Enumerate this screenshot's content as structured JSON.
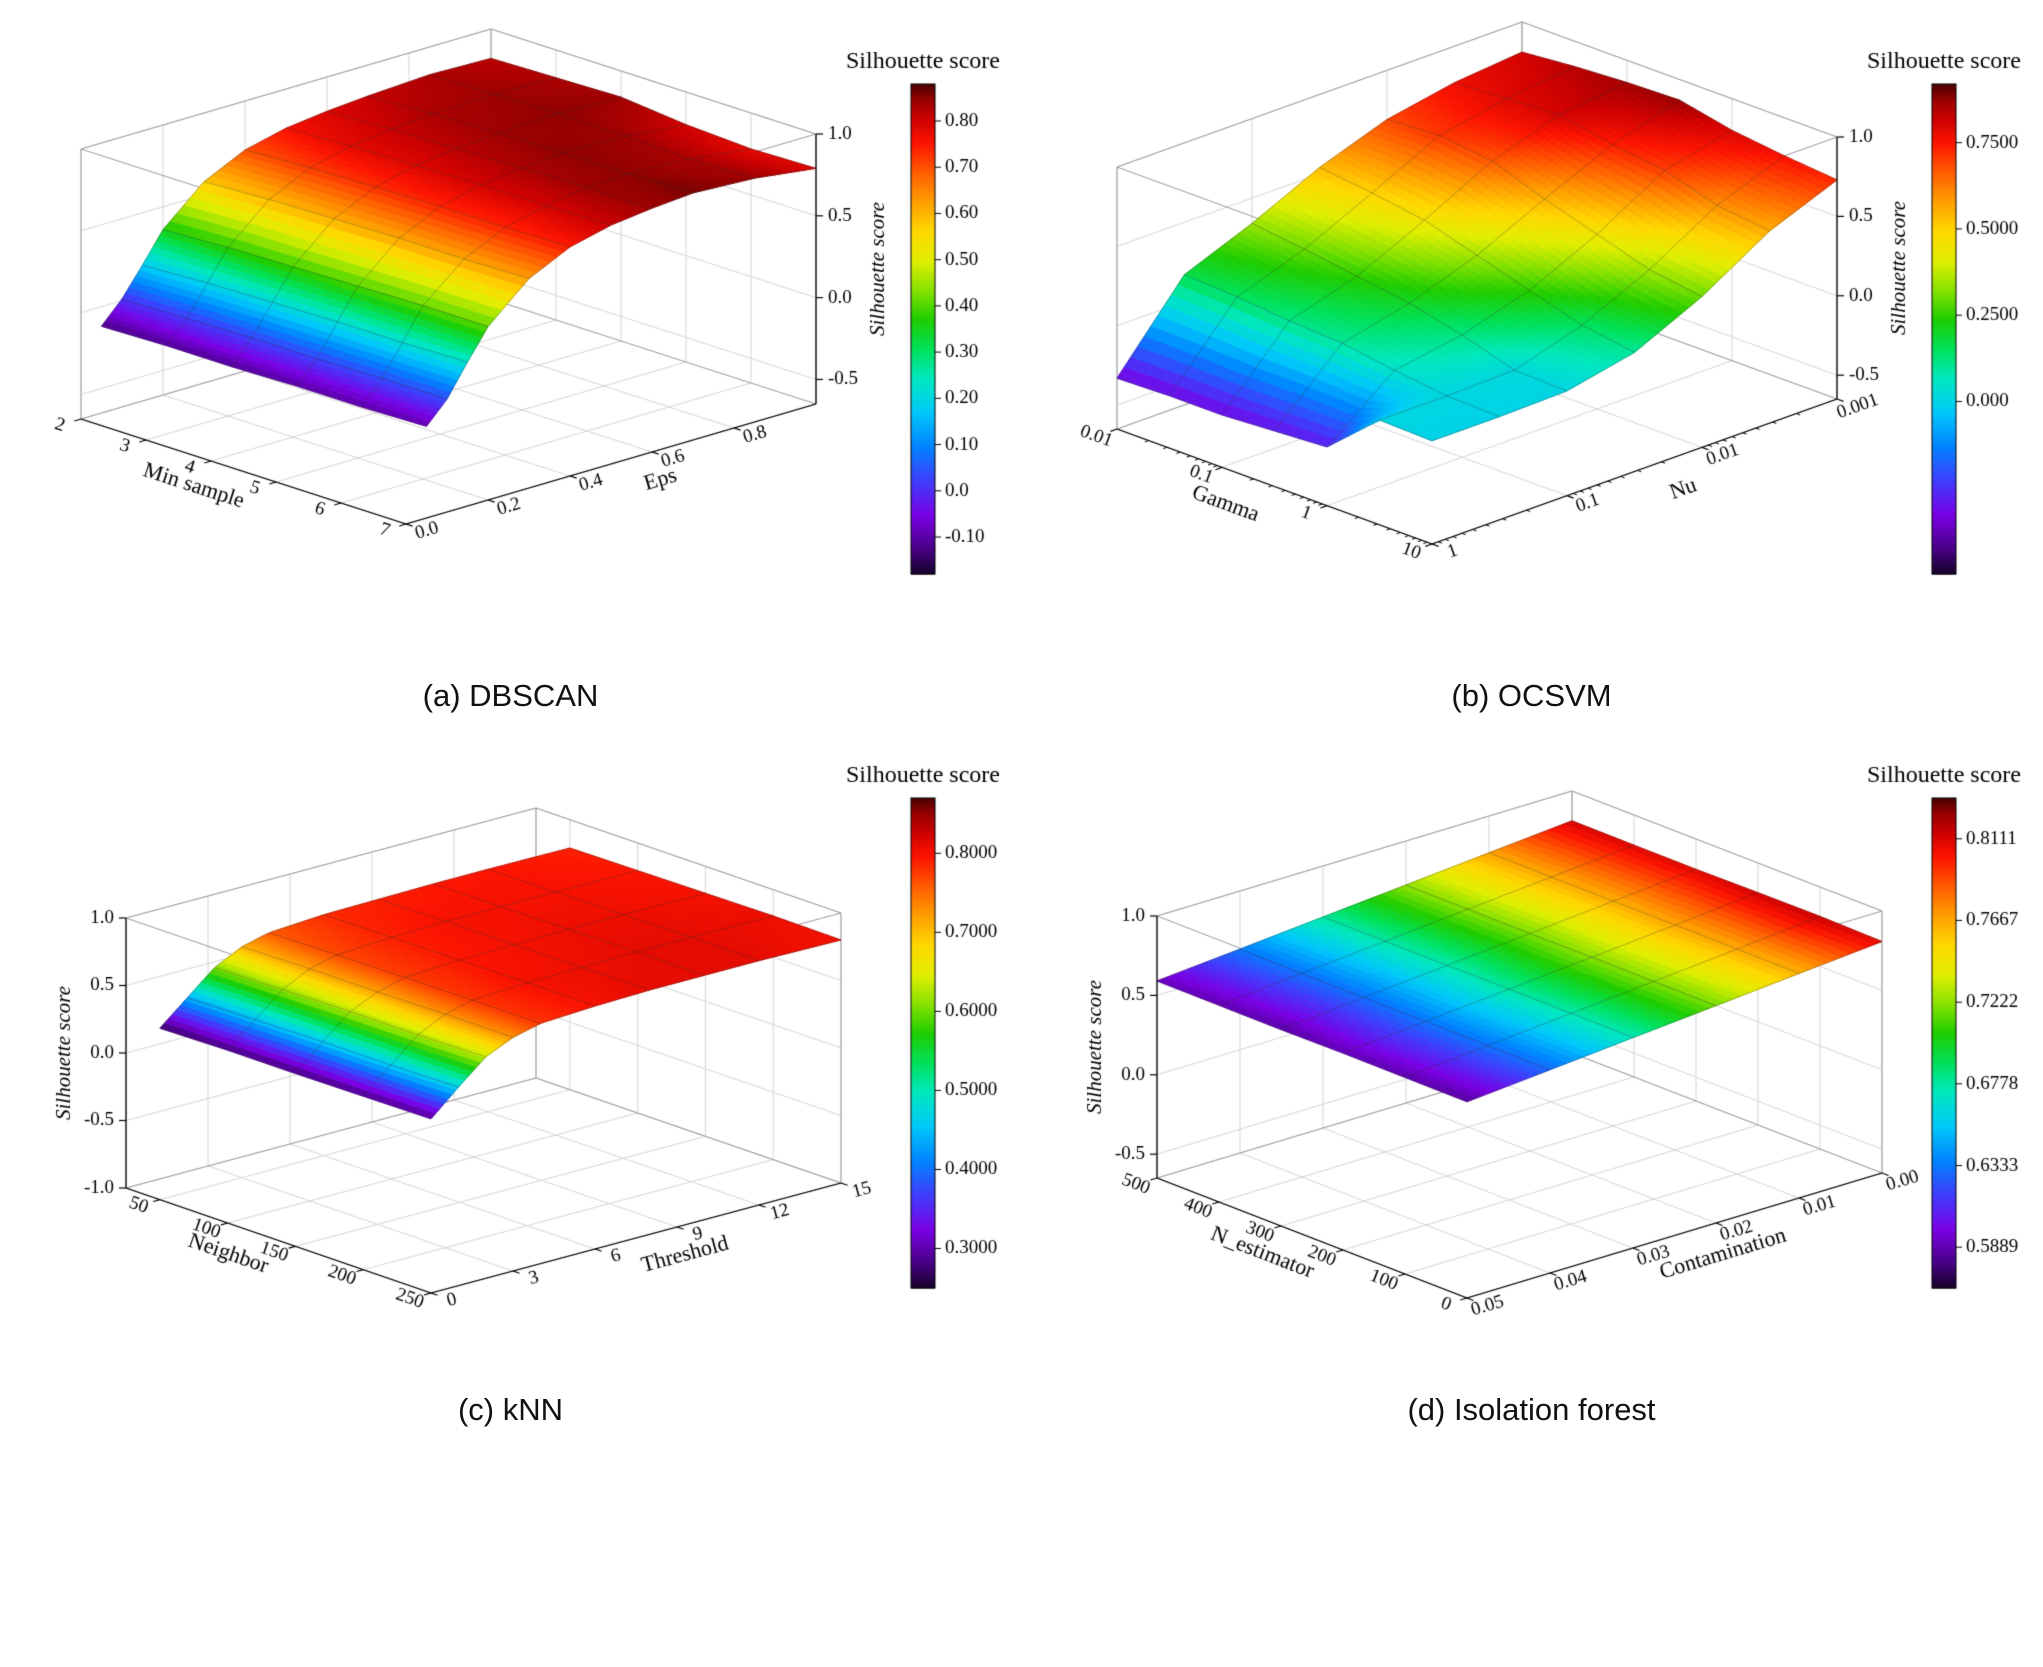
{
  "chart_data": [
    {
      "id": "dbscan",
      "type": "surface3d",
      "caption": "(a) DBSCAN",
      "xaxis": {
        "label": "Min sample",
        "scale": "linear",
        "start": 2,
        "end": 7,
        "tick_labels": [
          "2",
          "3",
          "4",
          "5",
          "6",
          "7"
        ],
        "tick_values": [
          2,
          3,
          4,
          5,
          6,
          7
        ]
      },
      "yaxis": {
        "label": "Eps",
        "scale": "linear",
        "start": 0,
        "end": 1,
        "tick_labels": [
          "0.0",
          "0.2",
          "0.4",
          "0.6",
          "0.8"
        ],
        "tick_values": [
          0,
          0.2,
          0.4,
          0.6,
          0.8
        ]
      },
      "zaxis": {
        "label": "Silhouette score",
        "min": -0.65,
        "max": 1,
        "tick_labels": [
          "1.0",
          "0.5",
          "0.0",
          "-0.5"
        ],
        "tick_values": [
          1,
          0.5,
          0,
          -0.5
        ]
      },
      "colorbar": {
        "title": "Silhouette score",
        "vmin": -0.18,
        "vmax": 0.88,
        "tick_labels": [
          "0.80",
          "0.70",
          "0.60",
          "0.50",
          "0.40",
          "0.30",
          "0.20",
          "0.10",
          "0.0",
          "-0.10"
        ],
        "tick_values": [
          0.8,
          0.7,
          0.6,
          0.5,
          0.4,
          0.3,
          0.2,
          0.1,
          0,
          -0.1
        ]
      },
      "x": [
        2,
        3,
        4,
        5,
        6,
        7
      ],
      "y": [
        0.05,
        0.1,
        0.15,
        0.2,
        0.3,
        0.4,
        0.5,
        0.6,
        0.7,
        0.85,
        1.0
      ],
      "z": [
        [
          -0.12,
          0.01,
          0.18,
          0.36,
          0.58,
          0.7,
          0.76,
          0.79,
          0.81,
          0.83,
          0.82
        ],
        [
          -0.11,
          0.02,
          0.2,
          0.38,
          0.6,
          0.72,
          0.78,
          0.81,
          0.83,
          0.84,
          0.83
        ],
        [
          -0.11,
          0.03,
          0.21,
          0.39,
          0.61,
          0.73,
          0.79,
          0.82,
          0.84,
          0.85,
          0.84
        ],
        [
          -0.1,
          0.03,
          0.22,
          0.4,
          0.62,
          0.74,
          0.8,
          0.83,
          0.85,
          0.84,
          0.8
        ],
        [
          -0.1,
          0.04,
          0.22,
          0.41,
          0.62,
          0.74,
          0.8,
          0.84,
          0.85,
          0.83,
          0.78
        ],
        [
          -0.09,
          0.04,
          0.23,
          0.41,
          0.63,
          0.75,
          0.81,
          0.84,
          0.86,
          0.84,
          0.79
        ]
      ]
    },
    {
      "id": "ocsvm",
      "type": "surface3d",
      "caption": "(b) OCSVM",
      "xaxis": {
        "label": "Gamma",
        "scale": "log",
        "start": 0.01,
        "end": 10,
        "tick_labels": [
          "0.01",
          "0.1",
          "1",
          "10"
        ],
        "tick_values": [
          0.01,
          0.1,
          1,
          10
        ]
      },
      "yaxis": {
        "label": "Nu",
        "scale": "log",
        "start": 1,
        "end": 0.001,
        "tick_labels": [
          "1",
          "0.1",
          "0.01",
          "0.001"
        ],
        "tick_values": [
          1,
          0.1,
          0.01,
          0.001
        ]
      },
      "zaxis": {
        "label": "Silhouette score",
        "min": -0.65,
        "max": 1,
        "tick_labels": [
          "1.0",
          "0.5",
          "0.0",
          "-0.5"
        ],
        "tick_values": [
          1,
          0.5,
          0,
          -0.5
        ]
      },
      "colorbar": {
        "title": "Silhouette score",
        "vmin": -0.5,
        "vmax": 0.92,
        "tick_labels": [
          "0.7500",
          "0.5000",
          "0.2500",
          "0.000"
        ],
        "tick_values": [
          0.75,
          0.5,
          0.25,
          0
        ]
      },
      "x": [
        0.01,
        0.0316,
        0.1,
        0.316,
        1,
        3.16,
        10
      ],
      "y": [
        1,
        0.316,
        0.1,
        0.0316,
        0.01,
        0.00316,
        0.001
      ],
      "z": [
        [
          -0.33,
          0.17,
          0.34,
          0.54,
          0.69,
          0.77,
          0.81
        ],
        [
          -0.32,
          0.15,
          0.3,
          0.5,
          0.71,
          0.79,
          0.84
        ],
        [
          -0.32,
          0.12,
          0.25,
          0.45,
          0.67,
          0.81,
          0.86
        ],
        [
          -0.3,
          0.1,
          0.2,
          0.35,
          0.55,
          0.74,
          0.87
        ],
        [
          -0.28,
          0.05,
          0.12,
          0.25,
          0.45,
          0.7,
          0.8
        ],
        [
          0.01,
          0.01,
          0.02,
          0.15,
          0.35,
          0.6,
          0.76
        ],
        [
          0.0,
          0.0,
          0.01,
          0.1,
          0.3,
          0.56,
          0.73
        ]
      ]
    },
    {
      "id": "knn",
      "type": "surface3d",
      "caption": "(c) kNN",
      "xaxis": {
        "label": "Neighbor",
        "scale": "linear",
        "start": 25,
        "end": 250,
        "tick_labels": [
          "50",
          "100",
          "150",
          "200",
          "250"
        ],
        "tick_values": [
          50,
          100,
          150,
          200,
          250
        ]
      },
      "yaxis": {
        "label": "Threshold",
        "scale": "linear",
        "start": 0,
        "end": 15,
        "tick_labels": [
          "0",
          "3",
          "6",
          "9",
          "12",
          "15"
        ],
        "tick_values": [
          0,
          3,
          6,
          9,
          12,
          15
        ]
      },
      "zaxis": {
        "label": "Silhouette score",
        "min": -1,
        "max": 1,
        "tick_labels": [
          "1.0",
          "0.5",
          "0.0",
          "-0.5",
          "-1.0"
        ],
        "tick_values": [
          1,
          0.5,
          0,
          -0.5,
          -1
        ]
      },
      "colorbar": {
        "title": "Silhouette score",
        "vmin": 0.25,
        "vmax": 0.87,
        "tick_labels": [
          "0.8000",
          "0.7000",
          "0.6000",
          "0.5000",
          "0.4000",
          "0.3000"
        ],
        "tick_values": [
          0.8,
          0.7,
          0.6,
          0.5,
          0.4,
          0.3
        ]
      },
      "x": [
        50,
        100,
        150,
        200,
        250
      ],
      "y": [
        0,
        1,
        2,
        3,
        4,
        6,
        8,
        10,
        12,
        15
      ],
      "z": [
        [
          0.27,
          0.44,
          0.61,
          0.71,
          0.76,
          0.785,
          0.79,
          0.795,
          0.795,
          0.79
        ],
        [
          0.28,
          0.45,
          0.62,
          0.72,
          0.77,
          0.79,
          0.8,
          0.8,
          0.8,
          0.795
        ],
        [
          0.28,
          0.46,
          0.63,
          0.72,
          0.775,
          0.795,
          0.8,
          0.805,
          0.805,
          0.8
        ],
        [
          0.285,
          0.46,
          0.63,
          0.73,
          0.78,
          0.8,
          0.805,
          0.81,
          0.81,
          0.805
        ],
        [
          0.29,
          0.47,
          0.64,
          0.73,
          0.78,
          0.8,
          0.81,
          0.81,
          0.81,
          0.8
        ]
      ]
    },
    {
      "id": "iforest",
      "type": "surface3d",
      "caption": "(d) Isolation forest",
      "xaxis": {
        "label": "N_estimator",
        "scale": "linear",
        "start": 500,
        "end": 0,
        "tick_labels": [
          "500",
          "400",
          "300",
          "200",
          "100",
          "0"
        ],
        "tick_values": [
          500,
          400,
          300,
          200,
          100,
          0
        ]
      },
      "yaxis": {
        "label": "Contamination",
        "scale": "linear",
        "start": 0.05,
        "end": 0,
        "tick_labels": [
          "0.05",
          "0.04",
          "0.03",
          "0.02",
          "0.01",
          "0.00"
        ],
        "tick_values": [
          0.05,
          0.04,
          0.03,
          0.02,
          0.01,
          0
        ]
      },
      "zaxis": {
        "label": "Silhouette score",
        "min": -0.65,
        "max": 1,
        "tick_labels": [
          "1.0",
          "0.5",
          "0.0",
          "-0.5"
        ],
        "tick_values": [
          1,
          0.5,
          0,
          -0.5
        ]
      },
      "colorbar": {
        "title": "Silhouette score",
        "vmin": 0.5667,
        "vmax": 0.8333,
        "tick_labels": [
          "0.8111",
          "0.7667",
          "0.7222",
          "0.6778",
          "0.6333",
          "0.5889"
        ],
        "tick_values": [
          0.8111,
          0.7667,
          0.7222,
          0.6778,
          0.6333,
          0.5889
        ]
      },
      "x": [
        500,
        400,
        300,
        200,
        100,
        0
      ],
      "y": [
        0.05,
        0.04,
        0.03,
        0.02,
        0.01,
        0
      ],
      "z": [
        [
          0.591,
          0.634,
          0.679,
          0.723,
          0.768,
          0.812
        ],
        [
          0.589,
          0.632,
          0.677,
          0.722,
          0.766,
          0.81
        ],
        [
          0.587,
          0.631,
          0.676,
          0.72,
          0.765,
          0.809
        ],
        [
          0.59,
          0.633,
          0.678,
          0.722,
          0.767,
          0.813
        ],
        [
          0.588,
          0.632,
          0.676,
          0.721,
          0.766,
          0.815
        ],
        [
          0.586,
          0.63,
          0.675,
          0.719,
          0.764,
          0.808
        ]
      ]
    }
  ]
}
